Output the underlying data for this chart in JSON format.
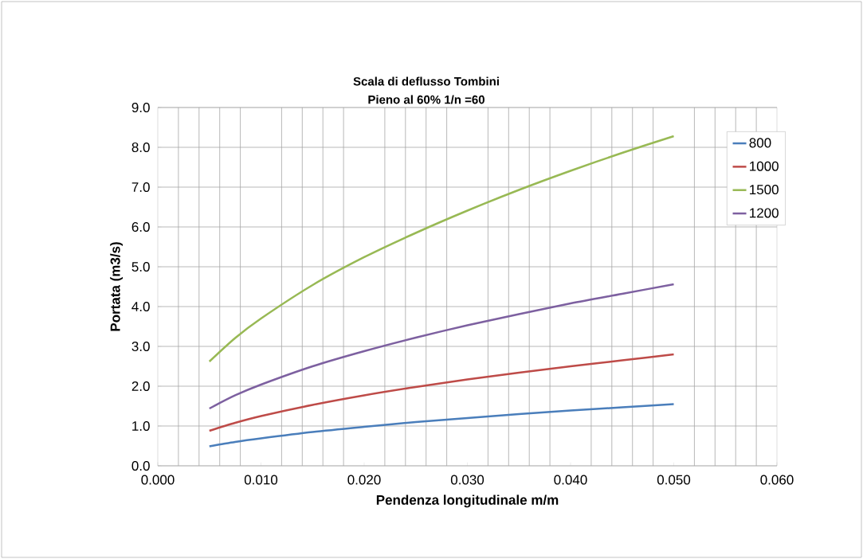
{
  "chart_data": {
    "type": "line",
    "title": "Scala di deflusso  Tombini",
    "subtitle": "Pieno al 60%  1/n =60",
    "xlabel": "Pendenza longitudinale  m/m",
    "ylabel": "Portata (m3/s)",
    "x": [
      0.005,
      0.0075,
      0.01,
      0.015,
      0.02,
      0.025,
      0.03,
      0.035,
      0.04,
      0.045,
      0.05
    ],
    "series": [
      {
        "name": "800",
        "color": "#4a7ebb",
        "values": [
          0.49,
          0.6,
          0.69,
          0.85,
          0.98,
          1.1,
          1.2,
          1.3,
          1.39,
          1.47,
          1.55
        ]
      },
      {
        "name": "1000",
        "color": "#be4b48",
        "values": [
          0.88,
          1.08,
          1.25,
          1.53,
          1.77,
          1.98,
          2.17,
          2.34,
          2.5,
          2.65,
          2.8
        ]
      },
      {
        "name": "1500",
        "color": "#98b954",
        "values": [
          2.62,
          3.21,
          3.7,
          4.54,
          5.24,
          5.85,
          6.41,
          6.93,
          7.41,
          7.86,
          8.28
        ]
      },
      {
        "name": "1200",
        "color": "#7d60a0",
        "values": [
          1.44,
          1.77,
          2.04,
          2.5,
          2.88,
          3.22,
          3.53,
          3.81,
          4.08,
          4.32,
          4.56
        ]
      }
    ],
    "xlim": [
      0,
      0.06
    ],
    "ylim": [
      0,
      9
    ],
    "xticks": [
      {
        "value": 0,
        "label": "0.000"
      },
      {
        "value": 0.01,
        "label": "0.010"
      },
      {
        "value": 0.02,
        "label": "0.020"
      },
      {
        "value": 0.03,
        "label": "0.030"
      },
      {
        "value": 0.04,
        "label": "0.040"
      },
      {
        "value": 0.05,
        "label": "0.050"
      },
      {
        "value": 0.06,
        "label": "0.060"
      }
    ],
    "yticks": [
      {
        "value": 0,
        "label": "0.0"
      },
      {
        "value": 1,
        "label": "1.0"
      },
      {
        "value": 2,
        "label": "2.0"
      },
      {
        "value": 3,
        "label": "3.0"
      },
      {
        "value": 4,
        "label": "4.0"
      },
      {
        "value": 5,
        "label": "5.0"
      },
      {
        "value": 6,
        "label": "6.0"
      },
      {
        "value": 7,
        "label": "7.0"
      },
      {
        "value": 8,
        "label": "8.0"
      },
      {
        "value": 9,
        "label": "9.0"
      }
    ],
    "grid": true,
    "legend": "right",
    "marker": "none",
    "line_style": "solid"
  }
}
